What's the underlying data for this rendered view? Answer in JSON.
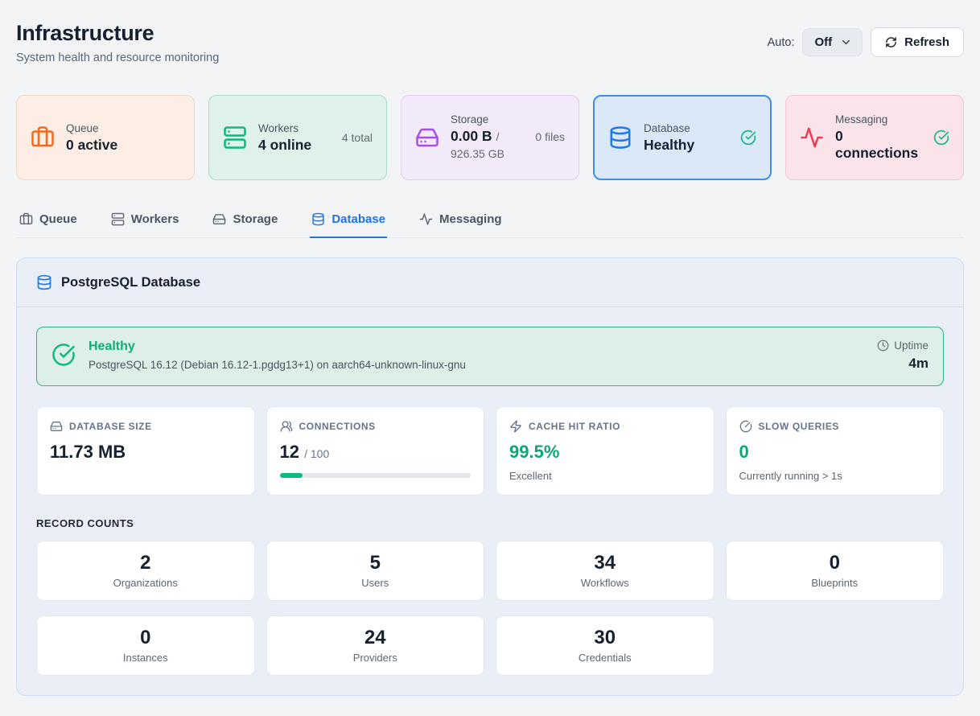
{
  "header": {
    "title": "Infrastructure",
    "subtitle": "System health and resource monitoring",
    "auto_label": "Auto:",
    "auto_value": "Off",
    "refresh_label": "Refresh"
  },
  "status_cards": [
    {
      "label": "Queue",
      "value": "0 active",
      "icon": "briefcase-icon",
      "accent": "#f26a1b",
      "bg": "#fceee4"
    },
    {
      "label": "Workers",
      "value": "4 online",
      "extra": "4 total",
      "icon": "server-icon",
      "accent": "#0fb77f",
      "bg": "#def2e9"
    },
    {
      "label": "Storage",
      "value": "0.00 B",
      "suffix": "/ 926.35 GB",
      "extra": "0 files",
      "icon": "hard-drive-icon",
      "accent": "#a44ef0",
      "bg": "#f3eaf9"
    },
    {
      "label": "Database",
      "value": "Healthy",
      "icon": "database-icon",
      "accent": "#1f78f0",
      "bg": "#dbe8f8",
      "status": "ok",
      "selected": true
    },
    {
      "label": "Messaging",
      "value": "0 connections",
      "icon": "activity-icon",
      "accent": "#f03b56",
      "bg": "#fae4e9",
      "status": "ok"
    }
  ],
  "tabs": [
    {
      "label": "Queue",
      "icon": "briefcase-icon",
      "active": false
    },
    {
      "label": "Workers",
      "icon": "server-icon",
      "active": false
    },
    {
      "label": "Storage",
      "icon": "hard-drive-icon",
      "active": false
    },
    {
      "label": "Database",
      "icon": "database-icon",
      "active": true
    },
    {
      "label": "Messaging",
      "icon": "activity-icon",
      "active": false
    }
  ],
  "panel": {
    "title": "PostgreSQL Database",
    "banner": {
      "status": "Healthy",
      "detail": "PostgreSQL 16.12 (Debian 16.12-1.pgdg13+1) on aarch64-unknown-linux-gnu",
      "uptime_label": "Uptime",
      "uptime_value": "4m"
    },
    "metrics": [
      {
        "label": "DATABASE SIZE",
        "value": "11.73 MB",
        "icon": "hard-drive-icon"
      },
      {
        "label": "CONNECTIONS",
        "value": "12",
        "suffix": "/ 100",
        "progress_pct": 12,
        "icon": "users-icon"
      },
      {
        "label": "CACHE HIT RATIO",
        "value": "99.5%",
        "note": "Excellent",
        "icon": "zap-icon",
        "value_color": "#0ca678"
      },
      {
        "label": "SLOW QUERIES",
        "value": "0",
        "note": "Currently running > 1s",
        "icon": "gauge-icon",
        "value_color": "#0ca678"
      }
    ],
    "record_counts_title": "RECORD COUNTS",
    "record_counts": [
      {
        "value": "2",
        "label": "Organizations"
      },
      {
        "value": "5",
        "label": "Users"
      },
      {
        "value": "34",
        "label": "Workflows"
      },
      {
        "value": "0",
        "label": "Blueprints"
      },
      {
        "value": "0",
        "label": "Instances"
      },
      {
        "value": "24",
        "label": "Providers"
      },
      {
        "value": "30",
        "label": "Credentials"
      }
    ]
  },
  "colors": {
    "page_bg": "#f2f4f6",
    "panel_bg": "#eaeef6",
    "panel_border": "#cdddf2",
    "active_blue": "#1f72e8",
    "success_green": "#10b981",
    "green_value": "#0ca678",
    "progress_fill": "#10b981"
  }
}
